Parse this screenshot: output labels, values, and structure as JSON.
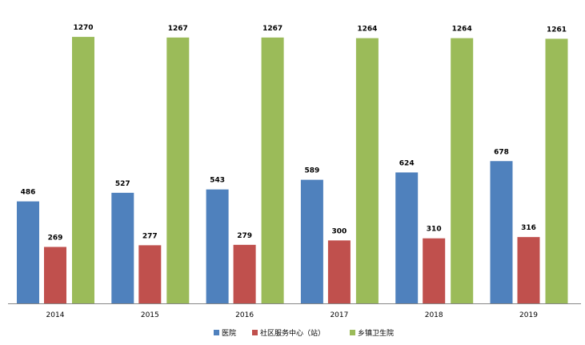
{
  "chart_data": {
    "type": "bar",
    "title": "",
    "xlabel": "",
    "ylabel": "",
    "ylim": [
      0,
      1400
    ],
    "grid": false,
    "legend_position": "bottom",
    "categories": [
      "2014",
      "2015",
      "2016",
      "2017",
      "2018",
      "2019"
    ],
    "series": [
      {
        "name": "医院",
        "color": "#4f81bd",
        "values": [
          486,
          527,
          543,
          589,
          624,
          678
        ]
      },
      {
        "name": "社区服务中心（站）",
        "color": "#c0504d",
        "values": [
          269,
          277,
          279,
          300,
          310,
          316
        ]
      },
      {
        "name": "乡镇卫生院",
        "color": "#9bbb59",
        "values": [
          1270,
          1267,
          1267,
          1264,
          1264,
          1261
        ]
      }
    ]
  }
}
